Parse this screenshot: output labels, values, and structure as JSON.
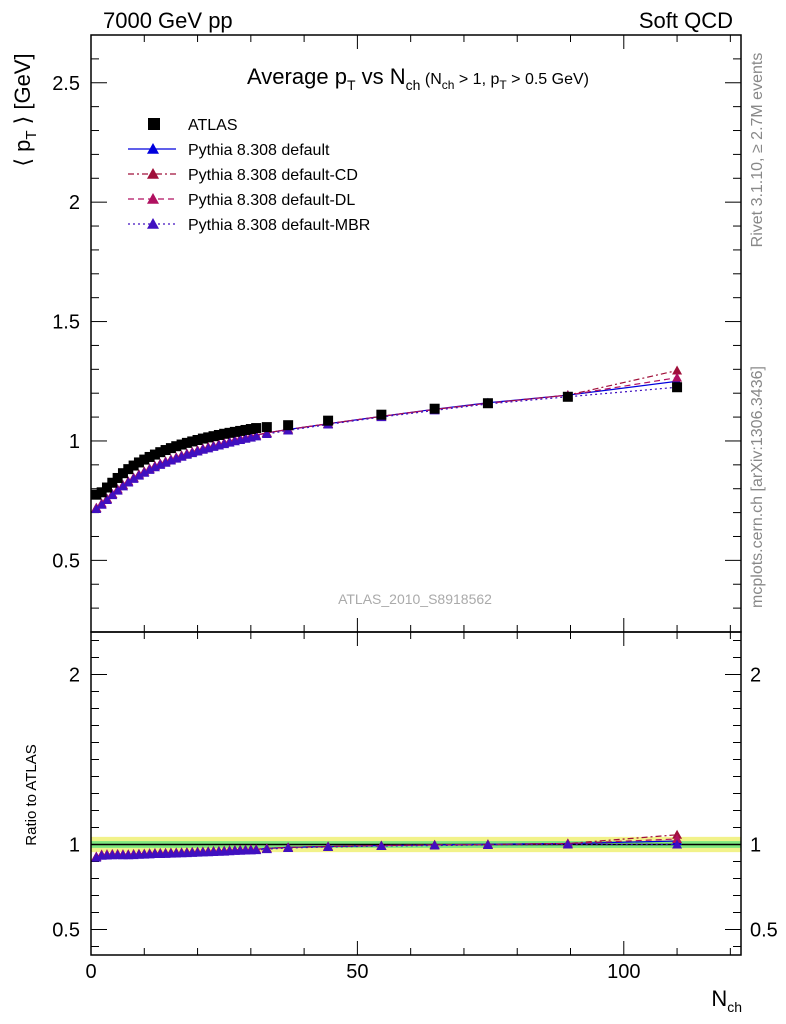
{
  "header": {
    "left": "7000 GeV pp",
    "right": "Soft QCD"
  },
  "title": {
    "main": "Average p",
    "main_sub": "T",
    "mid": " vs N",
    "mid_sub": "ch",
    "cond": " (N",
    "cond_sub1": "ch",
    "cond_mid": " > 1, p",
    "cond_sub2": "T",
    "cond_end": " > 0.5 GeV)"
  },
  "side_labels": {
    "rivet": "Rivet 3.1.10, ≥ 2.7M events",
    "mcplots": "mcplots.cern.ch [arXiv:1306.3436]"
  },
  "watermark": "ATLAS_2010_S8918562",
  "ylabel_top": {
    "pre": "⟨ p",
    "sub": "T",
    "post": " ⟩  [GeV]"
  },
  "ylabel_bottom": "Ratio to ATLAS",
  "xlabel": {
    "main": "N",
    "sub": "ch"
  },
  "colors": {
    "atlas": "#000000",
    "default": "#0000dd",
    "cd": "#a0103a",
    "dl": "#b01060",
    "mbr": "#4010c0",
    "band_inner": "#7fe87f",
    "band_outer": "#f2f28a"
  },
  "chart_data": {
    "type": "line",
    "xlim": [
      0,
      122
    ],
    "ylim_top": [
      0.2,
      2.7
    ],
    "ylim_ratio": [
      0.35,
      2.25
    ],
    "x_ticks": [
      0,
      50,
      100
    ],
    "y_ticks_top": [
      0.5,
      1,
      1.5,
      2,
      2.5
    ],
    "y_ticks_ratio": [
      0.5,
      1,
      2
    ],
    "legend_position": "top-left",
    "x": [
      1,
      2,
      3,
      4,
      5,
      6,
      7,
      8,
      9,
      10,
      11,
      12,
      13,
      14,
      15,
      16,
      17,
      18,
      19,
      20,
      21,
      22,
      23,
      24,
      25,
      26,
      27,
      28,
      29,
      30,
      31,
      33,
      37,
      44.5,
      54.5,
      64.5,
      74.5,
      89.5,
      110
    ],
    "series": [
      {
        "name": "ATLAS",
        "marker": "square",
        "values": [
          0.775,
          0.785,
          0.805,
          0.825,
          0.845,
          0.865,
          0.882,
          0.897,
          0.91,
          0.922,
          0.933,
          0.943,
          0.953,
          0.962,
          0.97,
          0.978,
          0.985,
          0.992,
          0.998,
          1.004,
          1.01,
          1.015,
          1.02,
          1.025,
          1.03,
          1.034,
          1.038,
          1.042,
          1.046,
          1.05,
          1.054,
          1.058,
          1.066,
          1.085,
          1.11,
          1.135,
          1.158,
          1.185,
          1.225
        ]
      },
      {
        "name": "Pythia 8.308 default",
        "marker": "triangle",
        "line": "solid",
        "values": [
          0.72,
          0.738,
          0.758,
          0.778,
          0.797,
          0.815,
          0.831,
          0.846,
          0.86,
          0.872,
          0.884,
          0.895,
          0.905,
          0.914,
          0.923,
          0.931,
          0.939,
          0.947,
          0.954,
          0.961,
          0.968,
          0.974,
          0.98,
          0.986,
          0.992,
          0.998,
          1.004,
          1.009,
          1.014,
          1.019,
          1.024,
          1.034,
          1.048,
          1.072,
          1.103,
          1.133,
          1.16,
          1.192,
          1.25
        ]
      },
      {
        "name": "Pythia 8.308 default-CD",
        "marker": "triangle",
        "line": "dashdot",
        "values": [
          0.72,
          0.738,
          0.758,
          0.778,
          0.797,
          0.815,
          0.831,
          0.846,
          0.86,
          0.872,
          0.884,
          0.895,
          0.905,
          0.914,
          0.923,
          0.931,
          0.939,
          0.947,
          0.954,
          0.961,
          0.968,
          0.974,
          0.98,
          0.986,
          0.992,
          0.998,
          1.004,
          1.009,
          1.014,
          1.019,
          1.024,
          1.034,
          1.048,
          1.072,
          1.103,
          1.132,
          1.158,
          1.192,
          1.295
        ]
      },
      {
        "name": "Pythia 8.308 default-DL",
        "marker": "triangle",
        "line": "dashed",
        "values": [
          0.72,
          0.738,
          0.758,
          0.778,
          0.797,
          0.815,
          0.831,
          0.846,
          0.86,
          0.872,
          0.884,
          0.895,
          0.905,
          0.914,
          0.923,
          0.931,
          0.939,
          0.947,
          0.954,
          0.961,
          0.968,
          0.974,
          0.98,
          0.986,
          0.992,
          0.998,
          1.004,
          1.009,
          1.014,
          1.019,
          1.024,
          1.034,
          1.048,
          1.072,
          1.103,
          1.132,
          1.158,
          1.192,
          1.265
        ]
      },
      {
        "name": "Pythia 8.308 default-MBR",
        "marker": "triangle",
        "line": "dotted",
        "values": [
          0.715,
          0.733,
          0.753,
          0.773,
          0.792,
          0.81,
          0.826,
          0.841,
          0.855,
          0.867,
          0.879,
          0.89,
          0.9,
          0.909,
          0.918,
          0.926,
          0.934,
          0.942,
          0.949,
          0.956,
          0.963,
          0.969,
          0.975,
          0.981,
          0.987,
          0.993,
          0.999,
          1.004,
          1.009,
          1.014,
          1.019,
          1.029,
          1.044,
          1.069,
          1.1,
          1.128,
          1.155,
          1.185,
          1.225
        ]
      }
    ],
    "ratio_band": {
      "inner": 0.02,
      "outer": 0.045
    }
  }
}
